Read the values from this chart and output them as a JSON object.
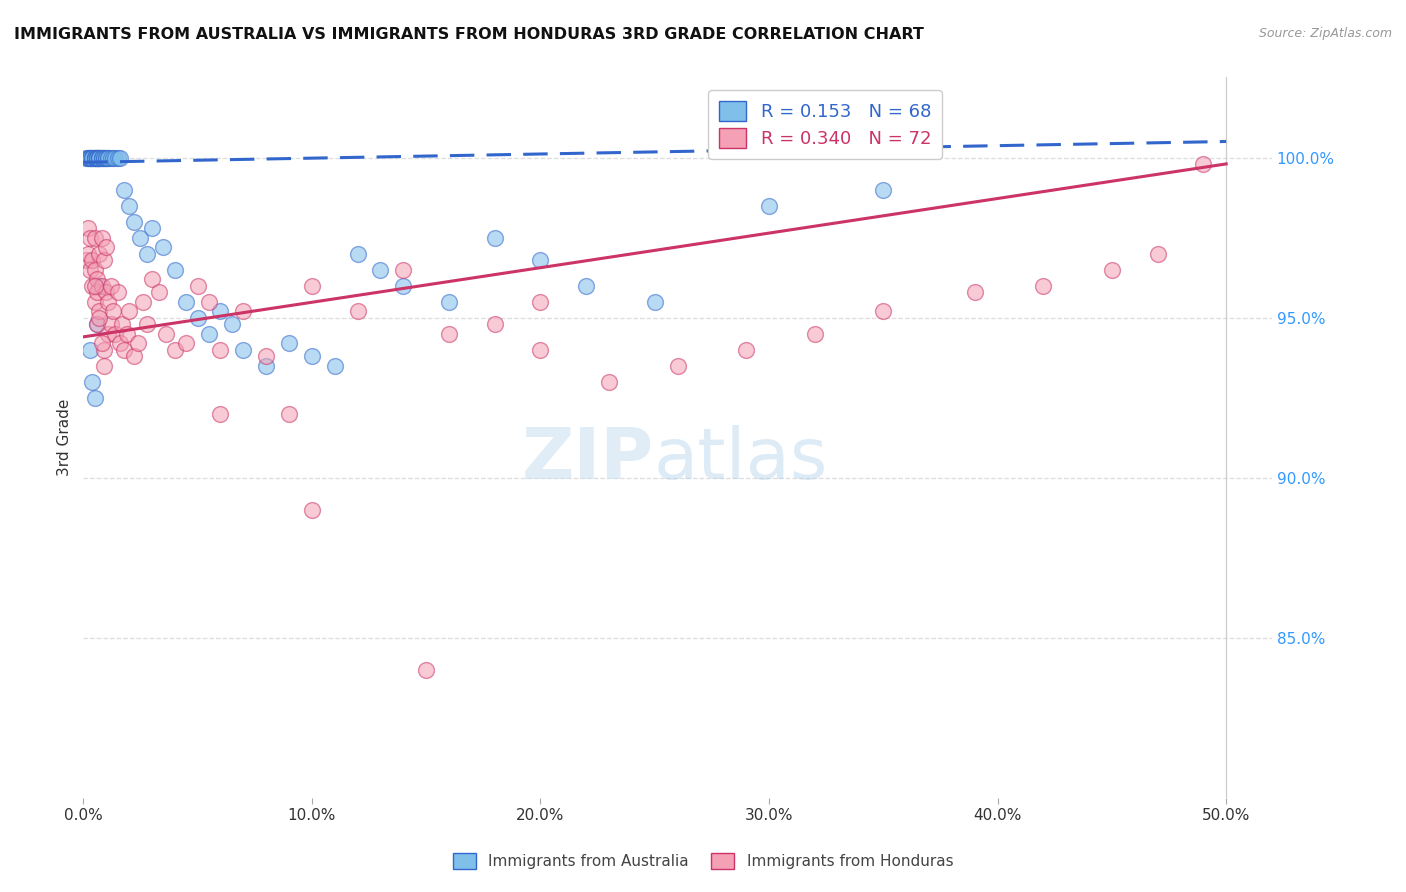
{
  "title": "IMMIGRANTS FROM AUSTRALIA VS IMMIGRANTS FROM HONDURAS 3RD GRADE CORRELATION CHART",
  "source": "Source: ZipAtlas.com",
  "ylabel": "3rd Grade",
  "ytick_labels": [
    "100.0%",
    "95.0%",
    "90.0%",
    "85.0%"
  ],
  "ytick_values": [
    1.0,
    0.95,
    0.9,
    0.85
  ],
  "xlim": [
    0.0,
    0.52
  ],
  "ylim": [
    0.8,
    1.025
  ],
  "legend_r_blue": "0.153",
  "legend_n_blue": "68",
  "legend_r_pink": "0.340",
  "legend_n_pink": "72",
  "blue_color": "#7fbfea",
  "pink_color": "#f4a0b5",
  "blue_line_color": "#3366cc",
  "pink_line_color": "#cc3366",
  "australia_scatter_x": [
    0.001,
    0.002,
    0.002,
    0.003,
    0.003,
    0.003,
    0.004,
    0.004,
    0.004,
    0.005,
    0.005,
    0.005,
    0.005,
    0.006,
    0.006,
    0.006,
    0.006,
    0.007,
    0.007,
    0.007,
    0.007,
    0.008,
    0.008,
    0.008,
    0.009,
    0.009,
    0.01,
    0.01,
    0.011,
    0.011,
    0.012,
    0.013,
    0.014,
    0.015,
    0.016,
    0.018,
    0.02,
    0.022,
    0.025,
    0.028,
    0.03,
    0.035,
    0.04,
    0.045,
    0.05,
    0.055,
    0.06,
    0.065,
    0.07,
    0.08,
    0.09,
    0.1,
    0.11,
    0.12,
    0.13,
    0.14,
    0.16,
    0.18,
    0.2,
    0.22,
    0.003,
    0.004,
    0.005,
    0.006,
    0.007,
    0.25,
    0.3,
    0.35
  ],
  "australia_scatter_y": [
    1.0,
    1.0,
    1.0,
    1.0,
    1.0,
    1.0,
    1.0,
    1.0,
    1.0,
    1.0,
    1.0,
    1.0,
    1.0,
    1.0,
    1.0,
    1.0,
    1.0,
    1.0,
    1.0,
    1.0,
    1.0,
    1.0,
    1.0,
    1.0,
    1.0,
    1.0,
    1.0,
    1.0,
    1.0,
    1.0,
    1.0,
    1.0,
    1.0,
    1.0,
    1.0,
    0.99,
    0.985,
    0.98,
    0.975,
    0.97,
    0.978,
    0.972,
    0.965,
    0.955,
    0.95,
    0.945,
    0.952,
    0.948,
    0.94,
    0.935,
    0.942,
    0.938,
    0.935,
    0.97,
    0.965,
    0.96,
    0.955,
    0.975,
    0.968,
    0.96,
    0.94,
    0.93,
    0.925,
    0.948,
    0.96,
    0.955,
    0.985,
    0.99
  ],
  "honduras_scatter_x": [
    0.001,
    0.002,
    0.002,
    0.003,
    0.003,
    0.004,
    0.004,
    0.005,
    0.005,
    0.005,
    0.006,
    0.006,
    0.006,
    0.007,
    0.007,
    0.008,
    0.008,
    0.009,
    0.009,
    0.01,
    0.01,
    0.011,
    0.011,
    0.012,
    0.012,
    0.013,
    0.014,
    0.015,
    0.016,
    0.017,
    0.018,
    0.019,
    0.02,
    0.022,
    0.024,
    0.026,
    0.028,
    0.03,
    0.033,
    0.036,
    0.04,
    0.045,
    0.05,
    0.055,
    0.06,
    0.07,
    0.08,
    0.09,
    0.1,
    0.12,
    0.14,
    0.16,
    0.18,
    0.2,
    0.23,
    0.26,
    0.29,
    0.32,
    0.35,
    0.39,
    0.42,
    0.45,
    0.47,
    0.49,
    0.005,
    0.007,
    0.008,
    0.009,
    0.06,
    0.1,
    0.15,
    0.2
  ],
  "honduras_scatter_y": [
    0.968,
    0.978,
    0.97,
    0.975,
    0.965,
    0.968,
    0.96,
    0.975,
    0.965,
    0.955,
    0.962,
    0.958,
    0.948,
    0.97,
    0.952,
    0.975,
    0.96,
    0.968,
    0.94,
    0.972,
    0.958,
    0.955,
    0.945,
    0.96,
    0.948,
    0.952,
    0.945,
    0.958,
    0.942,
    0.948,
    0.94,
    0.945,
    0.952,
    0.938,
    0.942,
    0.955,
    0.948,
    0.962,
    0.958,
    0.945,
    0.94,
    0.942,
    0.96,
    0.955,
    0.94,
    0.952,
    0.938,
    0.92,
    0.96,
    0.952,
    0.965,
    0.945,
    0.948,
    0.94,
    0.93,
    0.935,
    0.94,
    0.945,
    0.952,
    0.958,
    0.96,
    0.965,
    0.97,
    0.998,
    0.96,
    0.95,
    0.942,
    0.935,
    0.92,
    0.89,
    0.84,
    0.955
  ],
  "blue_trend_x": [
    0.0,
    0.5
  ],
  "blue_trend_y": [
    0.9985,
    1.005
  ],
  "pink_trend_x": [
    0.0,
    0.5
  ],
  "pink_trend_y": [
    0.944,
    0.998
  ]
}
